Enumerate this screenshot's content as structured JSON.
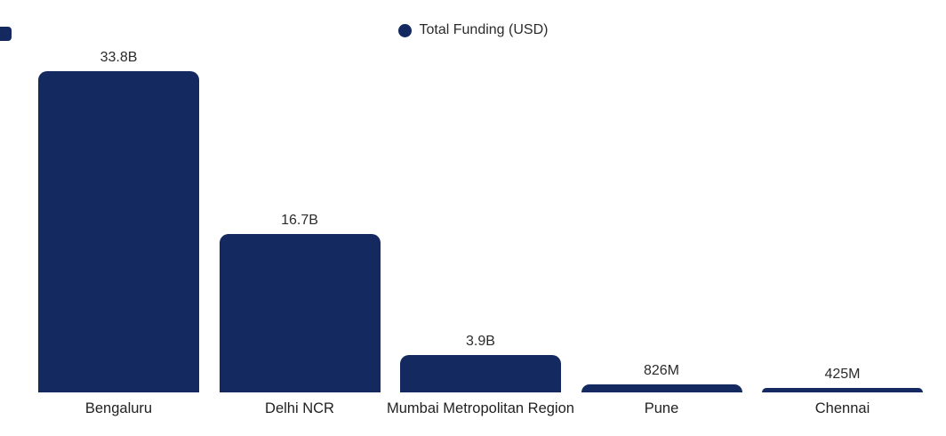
{
  "colors": {
    "bar": "#13295f",
    "value_text": "#2b2b2b",
    "category_text": "#222222",
    "background": "#ffffff"
  },
  "legend": {
    "label": "Total Funding (USD)"
  },
  "chart_data": {
    "type": "bar",
    "title": "",
    "xlabel": "",
    "ylabel": "",
    "legend_entries": [
      "Total Funding (USD)"
    ],
    "legend_position": "top-center",
    "grid": false,
    "axes_shown": false,
    "unit": "USD",
    "categories": [
      "Bengaluru",
      "Delhi NCR",
      "Mumbai Metropolitan Region",
      "Pune",
      "Chennai"
    ],
    "series": [
      {
        "name": "Total Funding (USD)",
        "values_billion_usd": [
          33.8,
          16.7,
          3.9,
          0.826,
          0.425
        ],
        "value_labels": [
          "33.8B",
          "16.7B",
          "3.9B",
          "826M",
          "425M"
        ]
      }
    ],
    "ylim_billion_usd": [
      0,
      35
    ],
    "bar_color": "#13295f"
  }
}
